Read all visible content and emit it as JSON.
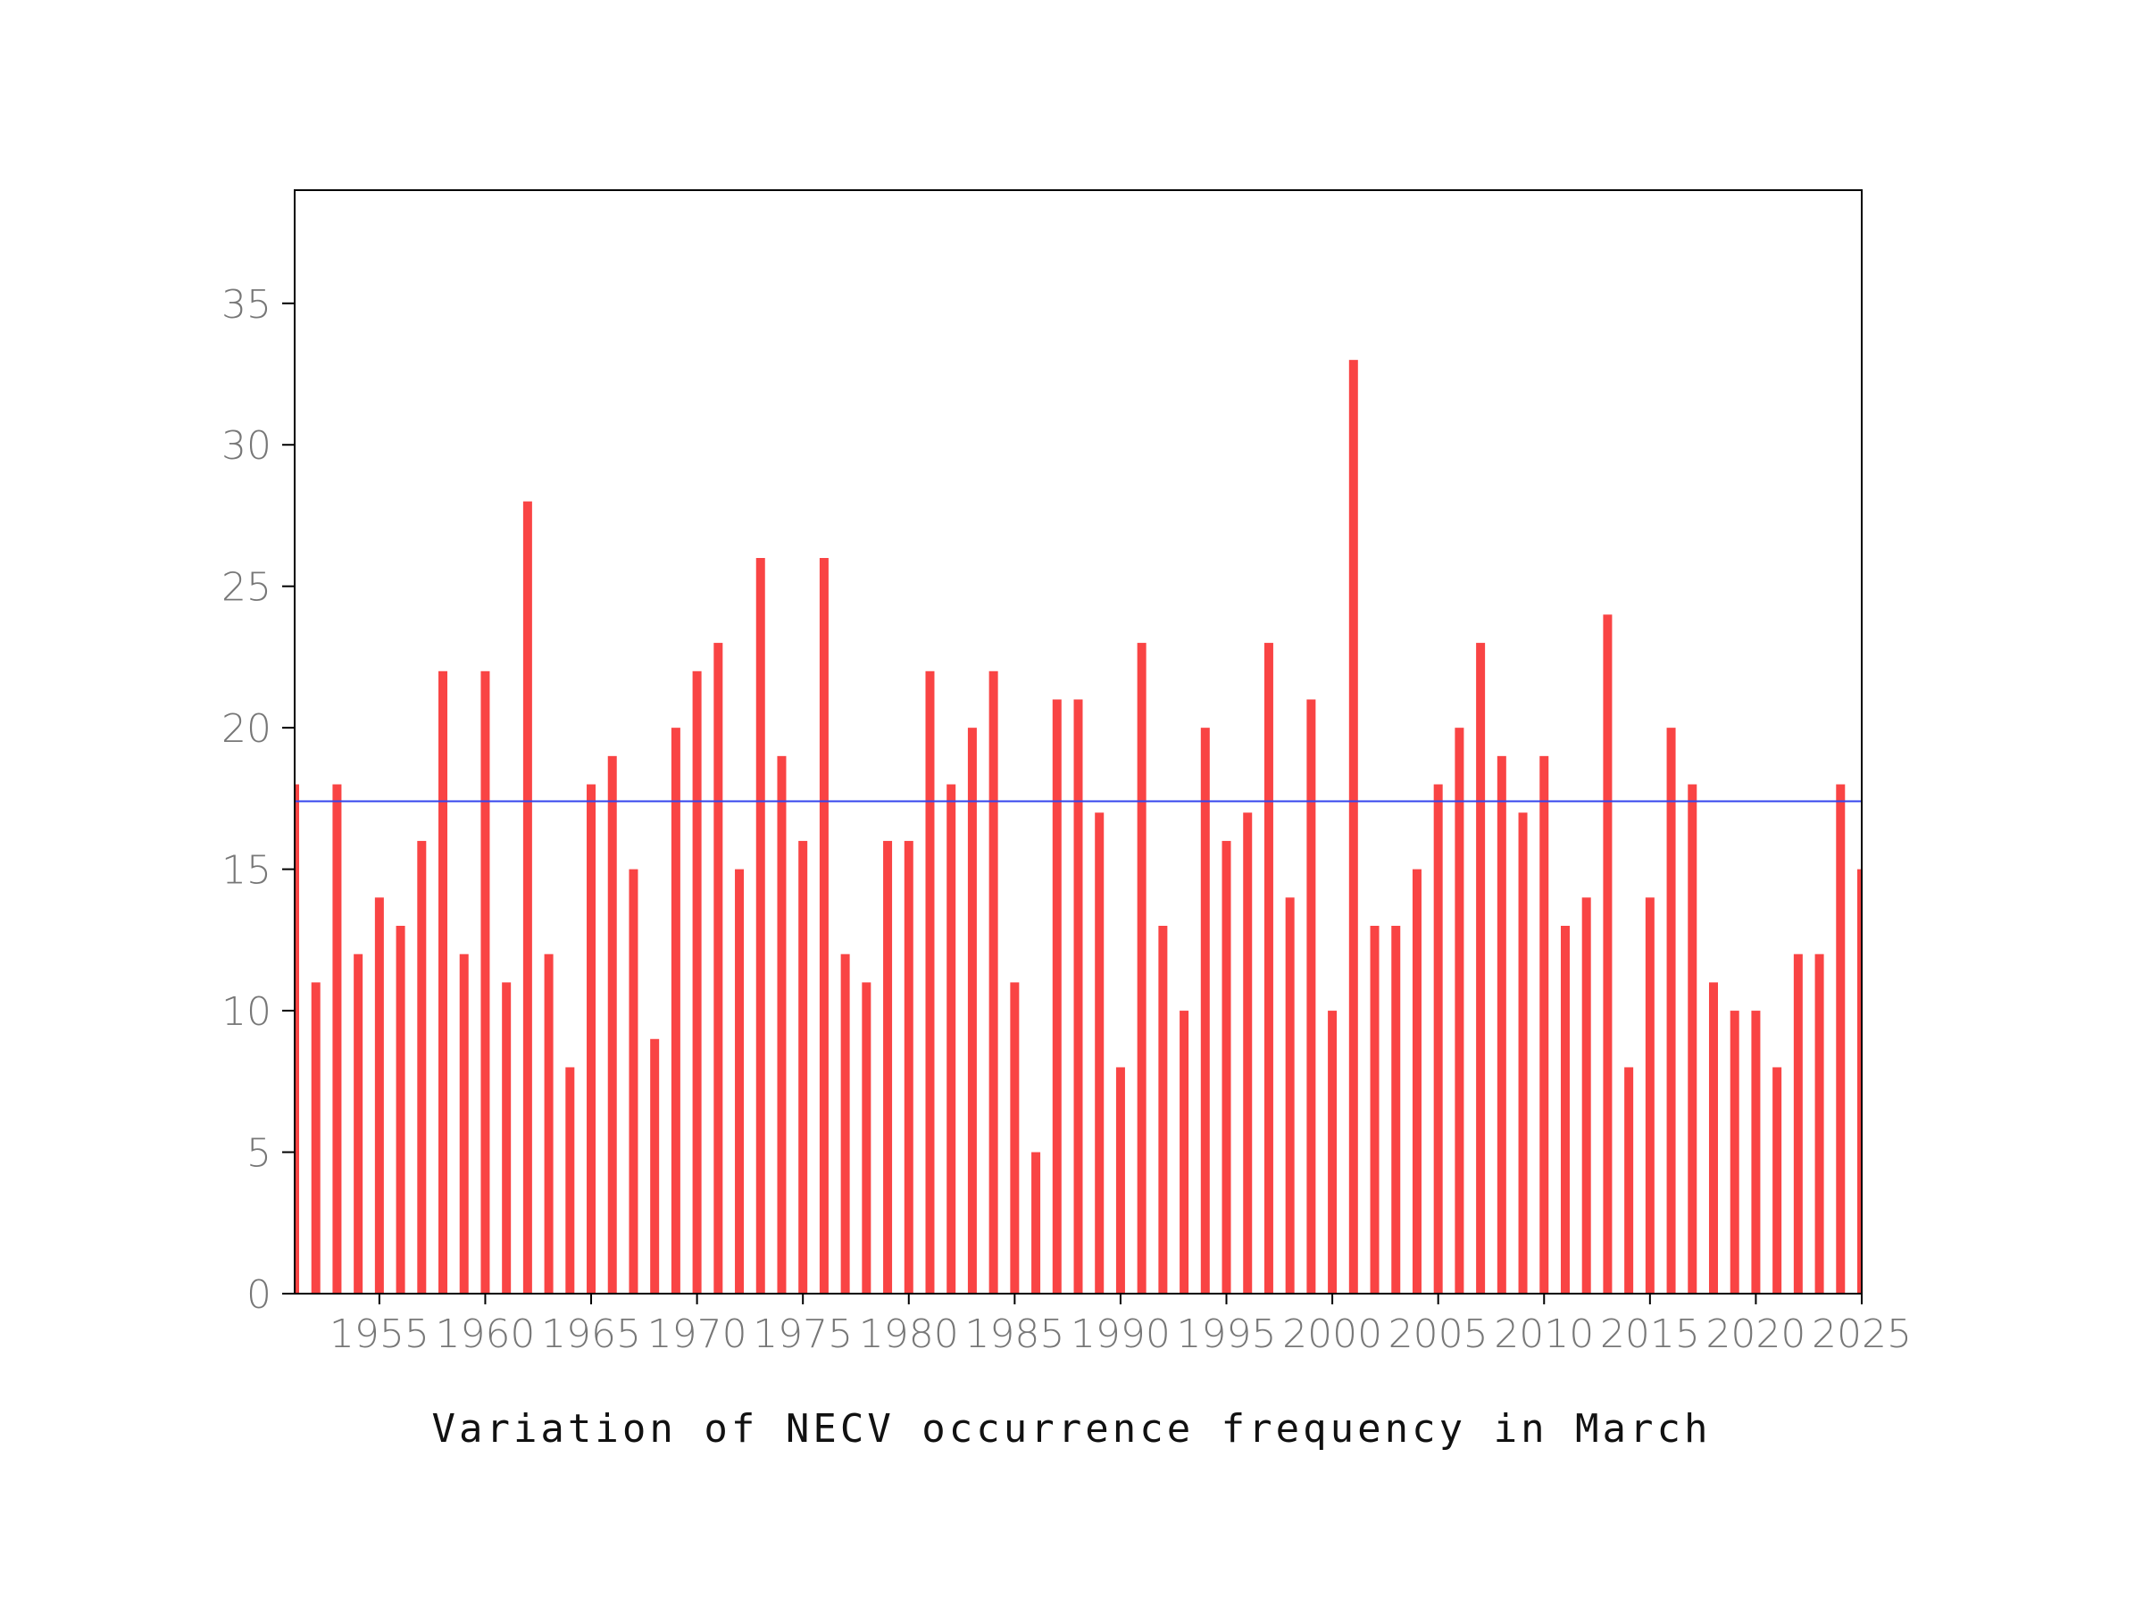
{
  "chart_data": {
    "type": "bar",
    "title": "Variation of NECV occurrence frequency in March",
    "xlabel": "",
    "ylabel": "",
    "x": [
      1951,
      1952,
      1953,
      1954,
      1955,
      1956,
      1957,
      1958,
      1959,
      1960,
      1961,
      1962,
      1963,
      1964,
      1965,
      1966,
      1967,
      1968,
      1969,
      1970,
      1971,
      1972,
      1973,
      1974,
      1975,
      1976,
      1977,
      1978,
      1979,
      1980,
      1981,
      1982,
      1983,
      1984,
      1985,
      1986,
      1987,
      1988,
      1989,
      1990,
      1991,
      1992,
      1993,
      1994,
      1995,
      1996,
      1997,
      1998,
      1999,
      2000,
      2001,
      2002,
      2003,
      2004,
      2005,
      2006,
      2007,
      2008,
      2009,
      2010,
      2011,
      2012,
      2013,
      2014,
      2015,
      2016,
      2017,
      2018,
      2019,
      2020,
      2021,
      2022,
      2023,
      2024,
      2025
    ],
    "values": [
      18,
      11,
      18,
      12,
      14,
      13,
      16,
      22,
      12,
      22,
      11,
      28,
      12,
      8,
      18,
      19,
      15,
      9,
      20,
      22,
      23,
      15,
      26,
      19,
      16,
      26,
      12,
      11,
      16,
      16,
      22,
      18,
      20,
      22,
      11,
      5,
      21,
      21,
      17,
      8,
      23,
      13,
      10,
      20,
      16,
      17,
      23,
      14,
      21,
      10,
      33,
      13,
      13,
      15,
      18,
      20,
      23,
      19,
      17,
      19,
      13,
      14,
      24,
      8,
      14,
      20,
      18,
      11,
      10,
      10,
      8,
      12,
      12,
      18,
      15
    ],
    "mean_line": 17.4,
    "xlim": [
      1951,
      2025
    ],
    "ylim": [
      0,
      39
    ],
    "x_ticks": [
      "1955",
      "1960",
      "1965",
      "1970",
      "1975",
      "1980",
      "1985",
      "1990",
      "1995",
      "2000",
      "2005",
      "2010",
      "2015",
      "2020",
      "2025"
    ],
    "y_ticks": [
      "0",
      "5",
      "10",
      "15",
      "20",
      "25",
      "30",
      "35"
    ],
    "grid": false,
    "colors": {
      "bar": "#f94444",
      "mean_line": "#3344ee",
      "axis": "#000000",
      "tick_label": "#777777"
    }
  }
}
